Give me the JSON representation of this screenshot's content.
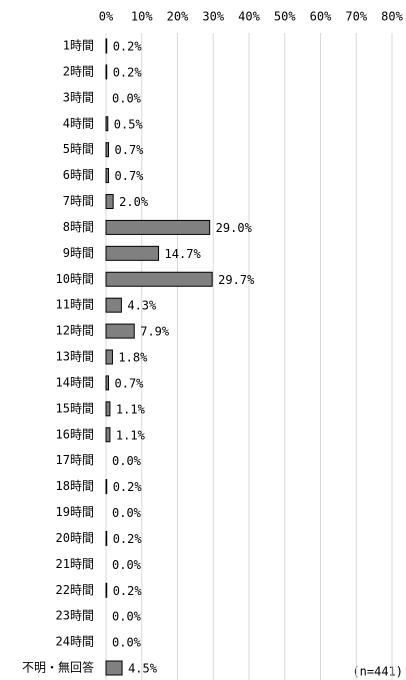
{
  "chart_data": {
    "type": "bar",
    "orientation": "horizontal",
    "categories": [
      "1時間",
      "2時間",
      "3時間",
      "4時間",
      "5時間",
      "6時間",
      "7時間",
      "8時間",
      "9時間",
      "10時間",
      "11時間",
      "12時間",
      "13時間",
      "14時間",
      "15時間",
      "16時間",
      "17時間",
      "18時間",
      "19時間",
      "20時間",
      "21時間",
      "22時間",
      "23時間",
      "24時間",
      "不明・無回答"
    ],
    "values": [
      0.2,
      0.2,
      0.0,
      0.5,
      0.7,
      0.7,
      2.0,
      29.0,
      14.7,
      29.7,
      4.3,
      7.9,
      1.8,
      0.7,
      1.1,
      1.1,
      0.0,
      0.2,
      0.0,
      0.2,
      0.0,
      0.2,
      0.0,
      0.0,
      4.5
    ],
    "value_labels": [
      "0.2%",
      "0.2%",
      "0.0%",
      "0.5%",
      "0.7%",
      "0.7%",
      "2.0%",
      "29.0%",
      "14.7%",
      "29.7%",
      "4.3%",
      "7.9%",
      "1.8%",
      "0.7%",
      "1.1%",
      "1.1%",
      "0.0%",
      "0.2%",
      "0.0%",
      "0.2%",
      "0.0%",
      "0.2%",
      "0.0%",
      "0.0%",
      "4.5%"
    ],
    "color": "#808080",
    "xlim": [
      0,
      80
    ],
    "xticks": [
      {
        "value": 0,
        "label": "0%"
      },
      {
        "value": 10,
        "label": "10%"
      },
      {
        "value": 20,
        "label": "20%"
      },
      {
        "value": 30,
        "label": "30%"
      },
      {
        "value": 40,
        "label": "40%"
      },
      {
        "value": 50,
        "label": "50%"
      },
      {
        "value": 60,
        "label": "60%"
      },
      {
        "value": 70,
        "label": "70%"
      },
      {
        "value": 80,
        "label": "80%"
      }
    ],
    "grid": true,
    "annotation": "(n=441)"
  }
}
